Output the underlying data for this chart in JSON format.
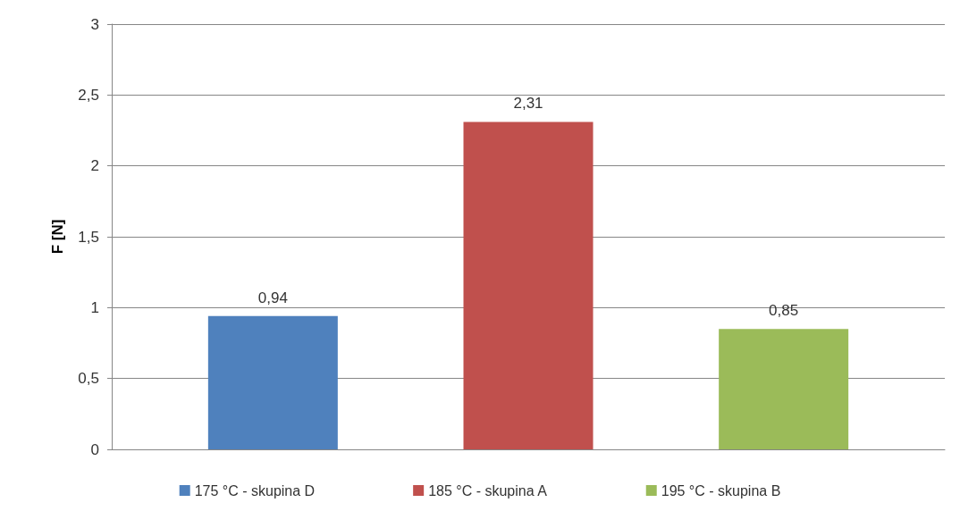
{
  "chart_data": {
    "type": "bar",
    "ylabel": "F [N]",
    "categories": [
      null
    ],
    "series": [
      {
        "name": "175 °C - skupina D",
        "color": "#4f81bd",
        "values": [
          0.94
        ],
        "value_labels": [
          "0,94"
        ]
      },
      {
        "name": "185 °C - skupina A",
        "color": "#c0504d",
        "values": [
          2.31
        ],
        "value_labels": [
          "2,31"
        ]
      },
      {
        "name": "195 °C - skupina B",
        "color": "#9bbb59",
        "values": [
          0.85
        ],
        "value_labels": [
          "0,85"
        ]
      }
    ],
    "ylim": [
      0,
      3
    ],
    "yticks": [
      0,
      {
        "value": 0.5,
        "label": "0,5"
      },
      1,
      {
        "value": 1.5,
        "label": "1,5"
      },
      2,
      {
        "value": 2.5,
        "label": "2,5"
      },
      3
    ],
    "grid": "y",
    "legend": "bottom"
  }
}
